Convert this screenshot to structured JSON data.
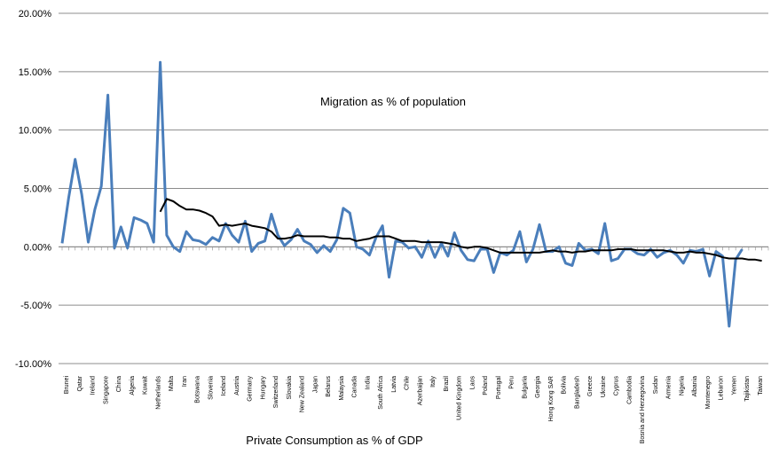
{
  "chart_data": {
    "type": "line",
    "title": "Migration as % of population",
    "xlabel": "Private Consumption as % of GDP",
    "ylabel": "",
    "ylim": [
      -10,
      20
    ],
    "yticks": [
      -10,
      -5,
      0,
      5,
      10,
      15,
      20
    ],
    "ytick_labels": [
      "-10.00%",
      "-5.00%",
      "0.00%",
      "5.00%",
      "10.00%",
      "15.00%",
      "20.00%"
    ],
    "grid": true,
    "legend": "none",
    "categories": [
      "Brunei",
      "Qatar",
      "Ireland",
      "Singapore",
      "China",
      "Algeria",
      "Kuwait",
      "Netherlands",
      "Malta",
      "Iran",
      "Botswana",
      "Slovenia",
      "Iceland",
      "Austria",
      "Germany",
      "Hungary",
      "Switzerland",
      "Slovakia",
      "New Zealand",
      "Japan",
      "Belarus",
      "Malaysia",
      "Canada",
      "India",
      "South Africa",
      "Latvia",
      "Chile",
      "Azerbaijan",
      "Italy",
      "Brazil",
      "United Kingdom",
      "Laos",
      "Poland",
      "Portugal",
      "Peru",
      "Bulgaria",
      "Georgia",
      "Hong Kong SAR",
      "Bolivia",
      "Bangladesh",
      "Greece",
      "Ukraine",
      "Cyprus",
      "Cambodia",
      "Bosnia and Herzegovina",
      "Sudan",
      "Armenia",
      "Nigeria",
      "Albania",
      "Montenegro",
      "Lebanon",
      "Yemen",
      "Tajikistan",
      "Taiwan"
    ],
    "series": [
      {
        "color": "#4a7ebb",
        "points": [
          [
            0,
            0.3
          ],
          [
            1,
            4.2
          ],
          [
            2,
            7.5
          ],
          [
            3,
            4.5
          ],
          [
            4,
            0.4
          ],
          [
            5,
            3.2
          ],
          [
            6,
            5.2
          ],
          [
            7,
            13.0
          ],
          [
            8,
            -0.1
          ],
          [
            9,
            1.7
          ],
          [
            10,
            -0.1
          ],
          [
            11,
            2.5
          ],
          [
            12,
            2.3
          ],
          [
            13,
            2.0
          ],
          [
            14,
            0.4
          ],
          [
            15,
            15.8
          ],
          [
            16,
            1.0
          ],
          [
            17,
            0.0
          ],
          [
            18,
            -0.4
          ],
          [
            19,
            1.3
          ],
          [
            20,
            0.6
          ],
          [
            21,
            0.5
          ],
          [
            22,
            0.2
          ],
          [
            23,
            0.8
          ],
          [
            24,
            0.5
          ],
          [
            25,
            2.0
          ],
          [
            26,
            1.0
          ],
          [
            27,
            0.4
          ],
          [
            28,
            2.2
          ],
          [
            29,
            -0.4
          ],
          [
            30,
            0.3
          ],
          [
            31,
            0.5
          ],
          [
            32,
            2.8
          ],
          [
            33,
            1.0
          ],
          [
            34,
            0.1
          ],
          [
            35,
            0.6
          ],
          [
            36,
            1.5
          ],
          [
            37,
            0.5
          ],
          [
            38,
            0.2
          ],
          [
            39,
            -0.5
          ],
          [
            40,
            0.1
          ],
          [
            41,
            -0.4
          ],
          [
            42,
            0.6
          ],
          [
            43,
            3.3
          ],
          [
            44,
            2.9
          ],
          [
            45,
            0.0
          ],
          [
            46,
            -0.2
          ],
          [
            47,
            -0.7
          ],
          [
            48,
            0.8
          ],
          [
            49,
            1.8
          ],
          [
            50,
            -2.6
          ],
          [
            51,
            0.5
          ],
          [
            52,
            0.4
          ],
          [
            53,
            -0.1
          ],
          [
            54,
            0.0
          ],
          [
            55,
            -0.9
          ],
          [
            56,
            0.5
          ],
          [
            57,
            -0.9
          ],
          [
            58,
            0.3
          ],
          [
            59,
            -0.8
          ],
          [
            60,
            1.2
          ],
          [
            61,
            -0.3
          ],
          [
            62,
            -1.1
          ],
          [
            63,
            -1.2
          ],
          [
            64,
            -0.2
          ],
          [
            65,
            -0.2
          ],
          [
            66,
            -2.2
          ],
          [
            67,
            -0.5
          ],
          [
            68,
            -0.7
          ],
          [
            69,
            -0.3
          ],
          [
            70,
            1.3
          ],
          [
            71,
            -1.3
          ],
          [
            72,
            -0.2
          ],
          [
            73,
            1.9
          ],
          [
            74,
            -0.4
          ],
          [
            75,
            -0.4
          ],
          [
            76,
            0.0
          ],
          [
            77,
            -1.4
          ],
          [
            78,
            -1.6
          ],
          [
            79,
            0.3
          ],
          [
            80,
            -0.3
          ],
          [
            81,
            -0.2
          ],
          [
            82,
            -0.6
          ],
          [
            83,
            2.0
          ],
          [
            84,
            -1.2
          ],
          [
            85,
            -1.0
          ],
          [
            86,
            -0.2
          ],
          [
            87,
            -0.2
          ],
          [
            88,
            -0.6
          ],
          [
            89,
            -0.7
          ],
          [
            90,
            -0.2
          ],
          [
            91,
            -0.9
          ],
          [
            92,
            -0.5
          ],
          [
            93,
            -0.3
          ],
          [
            94,
            -0.7
          ],
          [
            95,
            -1.4
          ],
          [
            96,
            -0.3
          ],
          [
            97,
            -0.4
          ],
          [
            98,
            -0.2
          ],
          [
            99,
            -2.5
          ],
          [
            100,
            -0.4
          ],
          [
            101,
            -0.8
          ],
          [
            102,
            -6.8
          ],
          [
            103,
            -1.1
          ],
          [
            104,
            -0.2
          ]
        ]
      },
      {
        "color": "#000000",
        "points": [
          [
            15,
            3.0
          ],
          [
            16,
            4.1
          ],
          [
            17,
            3.9
          ],
          [
            18,
            3.5
          ],
          [
            19,
            3.2
          ],
          [
            20,
            3.2
          ],
          [
            21,
            3.1
          ],
          [
            22,
            2.9
          ],
          [
            23,
            2.6
          ],
          [
            24,
            1.8
          ],
          [
            25,
            1.9
          ],
          [
            26,
            1.8
          ],
          [
            27,
            1.9
          ],
          [
            28,
            2.0
          ],
          [
            29,
            1.8
          ],
          [
            30,
            1.7
          ],
          [
            31,
            1.6
          ],
          [
            32,
            1.3
          ],
          [
            33,
            0.7
          ],
          [
            34,
            0.7
          ],
          [
            35,
            0.8
          ],
          [
            36,
            1.0
          ],
          [
            37,
            0.9
          ],
          [
            38,
            0.9
          ],
          [
            39,
            0.9
          ],
          [
            40,
            0.9
          ],
          [
            41,
            0.8
          ],
          [
            42,
            0.8
          ],
          [
            43,
            0.7
          ],
          [
            44,
            0.7
          ],
          [
            45,
            0.5
          ],
          [
            46,
            0.6
          ],
          [
            47,
            0.7
          ],
          [
            48,
            0.9
          ],
          [
            49,
            0.9
          ],
          [
            50,
            0.9
          ],
          [
            51,
            0.7
          ],
          [
            52,
            0.5
          ],
          [
            53,
            0.5
          ],
          [
            54,
            0.5
          ],
          [
            55,
            0.4
          ],
          [
            56,
            0.4
          ],
          [
            57,
            0.4
          ],
          [
            58,
            0.4
          ],
          [
            59,
            0.3
          ],
          [
            60,
            0.2
          ],
          [
            61,
            0.0
          ],
          [
            62,
            -0.1
          ],
          [
            63,
            0.0
          ],
          [
            64,
            0.0
          ],
          [
            65,
            -0.1
          ],
          [
            66,
            -0.3
          ],
          [
            67,
            -0.5
          ],
          [
            68,
            -0.5
          ],
          [
            69,
            -0.5
          ],
          [
            70,
            -0.5
          ],
          [
            71,
            -0.5
          ],
          [
            72,
            -0.5
          ],
          [
            73,
            -0.5
          ],
          [
            74,
            -0.4
          ],
          [
            75,
            -0.3
          ],
          [
            76,
            -0.4
          ],
          [
            77,
            -0.4
          ],
          [
            78,
            -0.5
          ],
          [
            79,
            -0.4
          ],
          [
            80,
            -0.4
          ],
          [
            81,
            -0.3
          ],
          [
            82,
            -0.3
          ],
          [
            83,
            -0.3
          ],
          [
            84,
            -0.3
          ],
          [
            85,
            -0.2
          ],
          [
            86,
            -0.2
          ],
          [
            87,
            -0.2
          ],
          [
            88,
            -0.3
          ],
          [
            89,
            -0.3
          ],
          [
            90,
            -0.3
          ],
          [
            91,
            -0.3
          ],
          [
            92,
            -0.3
          ],
          [
            93,
            -0.4
          ],
          [
            94,
            -0.5
          ],
          [
            95,
            -0.5
          ],
          [
            96,
            -0.4
          ],
          [
            97,
            -0.5
          ],
          [
            98,
            -0.5
          ],
          [
            99,
            -0.6
          ],
          [
            100,
            -0.7
          ],
          [
            101,
            -0.9
          ],
          [
            102,
            -1.0
          ],
          [
            103,
            -1.0
          ],
          [
            104,
            -1.0
          ],
          [
            105,
            -1.1
          ],
          [
            106,
            -1.1
          ],
          [
            107,
            -1.2
          ]
        ]
      }
    ]
  }
}
